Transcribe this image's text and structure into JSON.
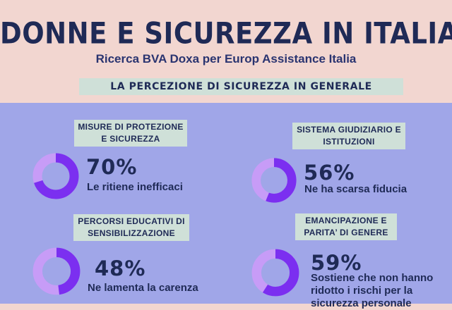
{
  "title": "DONNE E SICUREZZA IN ITALIA",
  "subtitle": "Ricerca BVA Doxa per Europ Assistance Italia",
  "section_header": "LA PERCEZIONE DI SICUREZZA IN GENERALE",
  "colors": {
    "background": "#f2d6d0",
    "panel": "#a0a6e8",
    "label_box": "#cfe0d8",
    "donut_value": "#7b2ff0",
    "donut_rest": "#c79cf7",
    "text": "#1f2a56"
  },
  "chart_data": {
    "type": "pie",
    "items": [
      {
        "category": "MISURE DI PROTEZIONE E SICUREZZA",
        "value": 70,
        "value_label": "70%",
        "description": "Le ritiene inefficaci"
      },
      {
        "category": "SISTEMA GIUDIZIARIO E ISTITUZIONI",
        "value": 56,
        "value_label": "56%",
        "description": "Ne ha scarsa fiducia"
      },
      {
        "category": "PERCORSI EDUCATIVI DI SENSIBILIZZAZIONE",
        "value": 48,
        "value_label": "48%",
        "description": "Ne lamenta la carenza"
      },
      {
        "category": "EMANCIPAZIONE E PARITA’ DI GENERE",
        "value": 59,
        "value_label": "59%",
        "description": "Sostiene che non hanno ridotto i rischi per la sicurezza personale"
      }
    ]
  }
}
